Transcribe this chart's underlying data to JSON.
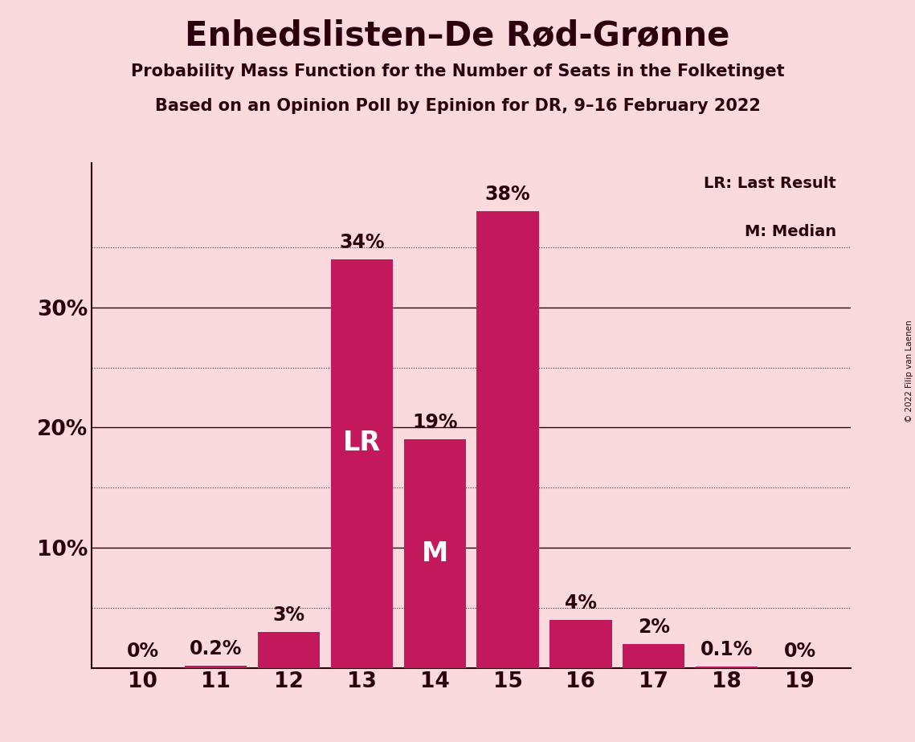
{
  "title": "Enhedslisten–De Rød-Grønne",
  "subtitle1": "Probability Mass Function for the Number of Seats in the Folketinget",
  "subtitle2": "Based on an Opinion Poll by Epinion for DR, 9–16 February 2022",
  "copyright": "© 2022 Filip van Laenen",
  "categories": [
    10,
    11,
    12,
    13,
    14,
    15,
    16,
    17,
    18,
    19
  ],
  "values": [
    0.0,
    0.2,
    3.0,
    34.0,
    19.0,
    38.0,
    4.0,
    2.0,
    0.1,
    0.0
  ],
  "labels": [
    "0%",
    "0.2%",
    "3%",
    "34%",
    "19%",
    "38%",
    "4%",
    "2%",
    "0.1%",
    "0%"
  ],
  "bar_color": "#C4185C",
  "background_color": "#FADADD",
  "text_color": "#2D000E",
  "lr_bar": 13,
  "median_bar": 14,
  "lr_label": "LR",
  "median_label": "M",
  "legend_lr": "LR: Last Result",
  "legend_m": "M: Median",
  "dotted_lines": [
    5,
    15,
    25,
    35
  ],
  "solid_lines": [
    10,
    20,
    30
  ],
  "ymax": 42,
  "title_fontsize": 30,
  "subtitle_fontsize": 15,
  "axis_fontsize": 19,
  "bar_label_fontsize": 17,
  "inner_label_fontsize": 24,
  "legend_fontsize": 14
}
